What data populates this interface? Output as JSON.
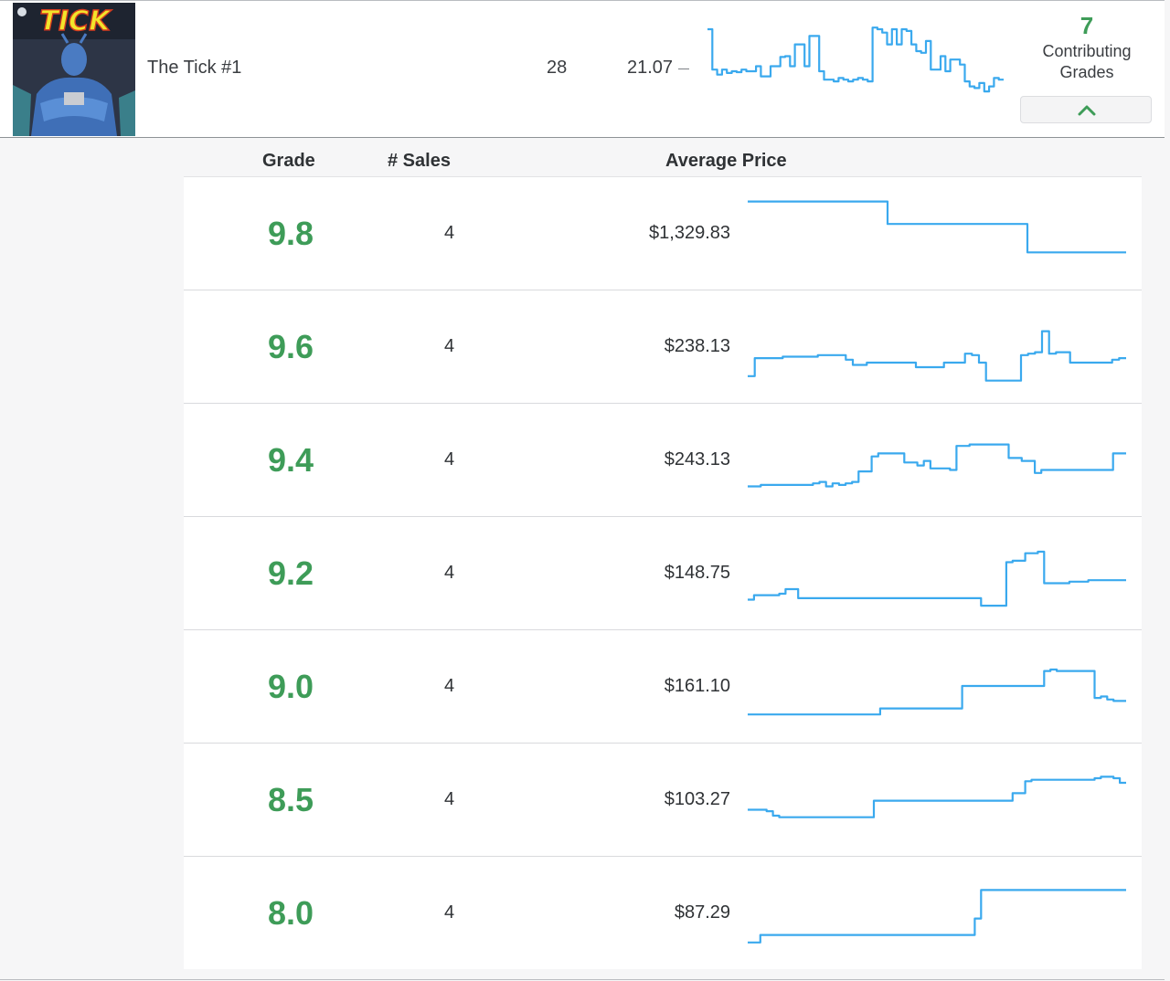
{
  "comic": {
    "cover_logo": "TICK",
    "title": "The Tick #1",
    "sales": "28",
    "avg_index": "21.07",
    "contributing_count": "7",
    "contributing_label_line1": "Contributing",
    "contributing_label_line2": "Grades",
    "collapse_icon": "chevron-up-icon",
    "trend": [
      12,
      60,
      66,
      60,
      64,
      62,
      63,
      60,
      62,
      62,
      56,
      68,
      68,
      56,
      56,
      45,
      44,
      56,
      30,
      30,
      56,
      20,
      20,
      62,
      72,
      72,
      74,
      70,
      72,
      74,
      72,
      70,
      72,
      74,
      10,
      12,
      16,
      30,
      12,
      30,
      12,
      14,
      30,
      38,
      40,
      26,
      60,
      60,
      44,
      62,
      48,
      48,
      54,
      74,
      80,
      82,
      76,
      86,
      80,
      70,
      72
    ]
  },
  "accent": "#3e9c58",
  "spark_color": "#3aa9ee",
  "table": {
    "headers": {
      "grade": "Grade",
      "sales": "# Sales",
      "price": "Average Price"
    },
    "rows": [
      {
        "grade": "9.8",
        "sales": "4",
        "price": "$1,329.83",
        "trend": [
          8,
          8,
          8,
          8,
          8,
          8,
          8,
          8,
          8,
          8,
          8,
          8,
          8,
          8,
          8,
          8,
          8,
          38,
          38,
          38,
          38,
          38,
          38,
          38,
          38,
          38,
          38,
          38,
          38,
          38,
          38,
          38,
          38,
          38,
          76,
          76,
          76,
          76,
          76,
          76,
          76,
          76,
          76,
          76,
          76,
          76
        ]
      },
      {
        "grade": "9.6",
        "sales": "4",
        "price": "$238.13",
        "trend": [
          90,
          66,
          66,
          66,
          66,
          64,
          64,
          64,
          64,
          64,
          62,
          62,
          62,
          62,
          68,
          75,
          75,
          72,
          72,
          72,
          72,
          72,
          72,
          72,
          78,
          78,
          78,
          78,
          72,
          72,
          72,
          60,
          62,
          72,
          96,
          96,
          96,
          96,
          96,
          62,
          60,
          58,
          30,
          60,
          58,
          58,
          72,
          72,
          72,
          72,
          72,
          72,
          68,
          66
        ]
      },
      {
        "grade": "9.4",
        "sales": "4",
        "price": "$243.13",
        "trend": [
          86,
          86,
          84,
          84,
          84,
          84,
          84,
          84,
          84,
          84,
          82,
          80,
          86,
          82,
          84,
          82,
          80,
          66,
          66,
          46,
          42,
          42,
          42,
          42,
          54,
          54,
          58,
          52,
          62,
          62,
          62,
          64,
          32,
          32,
          30,
          30,
          30,
          30,
          30,
          30,
          48,
          48,
          52,
          52,
          68,
          64,
          64,
          64,
          64,
          64,
          64,
          64,
          64,
          64,
          64,
          64,
          42,
          42
        ]
      },
      {
        "grade": "9.2",
        "sales": "4",
        "price": "$148.75",
        "trend": [
          86,
          80,
          80,
          80,
          80,
          78,
          72,
          72,
          84,
          84,
          84,
          84,
          84,
          84,
          84,
          84,
          84,
          84,
          84,
          84,
          84,
          84,
          84,
          84,
          84,
          84,
          84,
          84,
          84,
          84,
          84,
          84,
          84,
          84,
          84,
          84,
          84,
          94,
          94,
          94,
          94,
          36,
          34,
          34,
          24,
          24,
          22,
          64,
          64,
          64,
          64,
          62,
          62,
          62,
          60,
          60,
          60,
          60,
          60,
          60
        ]
      },
      {
        "grade": "9.0",
        "sales": "4",
        "price": "$161.10",
        "trend": [
          88,
          88,
          88,
          88,
          88,
          88,
          88,
          88,
          88,
          88,
          88,
          88,
          88,
          88,
          88,
          88,
          88,
          88,
          88,
          88,
          88,
          80,
          80,
          80,
          80,
          80,
          80,
          80,
          80,
          80,
          80,
          80,
          80,
          80,
          50,
          50,
          50,
          50,
          50,
          50,
          50,
          50,
          50,
          50,
          50,
          50,
          50,
          30,
          28,
          30,
          30,
          30,
          30,
          30,
          30,
          66,
          64,
          68,
          70,
          70
        ]
      },
      {
        "grade": "8.5",
        "sales": "4",
        "price": "$103.27",
        "trend": [
          64,
          64,
          64,
          66,
          72,
          74,
          74,
          74,
          74,
          74,
          74,
          74,
          74,
          74,
          74,
          74,
          74,
          74,
          74,
          74,
          52,
          52,
          52,
          52,
          52,
          52,
          52,
          52,
          52,
          52,
          52,
          52,
          52,
          52,
          52,
          52,
          52,
          52,
          52,
          52,
          52,
          52,
          42,
          42,
          26,
          24,
          24,
          24,
          24,
          24,
          24,
          24,
          24,
          24,
          24,
          22,
          20,
          20,
          22,
          28
        ]
      },
      {
        "grade": "8.0",
        "sales": "4",
        "price": "$87.29",
        "trend": [
          90,
          90,
          80,
          80,
          80,
          80,
          80,
          80,
          80,
          80,
          80,
          80,
          80,
          80,
          80,
          80,
          80,
          80,
          80,
          80,
          80,
          80,
          80,
          80,
          80,
          80,
          80,
          80,
          80,
          80,
          80,
          80,
          80,
          80,
          80,
          80,
          58,
          20,
          20,
          20,
          20,
          20,
          20,
          20,
          20,
          20,
          20,
          20,
          20,
          20,
          20,
          20,
          20,
          20,
          20,
          20,
          20,
          20,
          20,
          20
        ]
      }
    ]
  }
}
